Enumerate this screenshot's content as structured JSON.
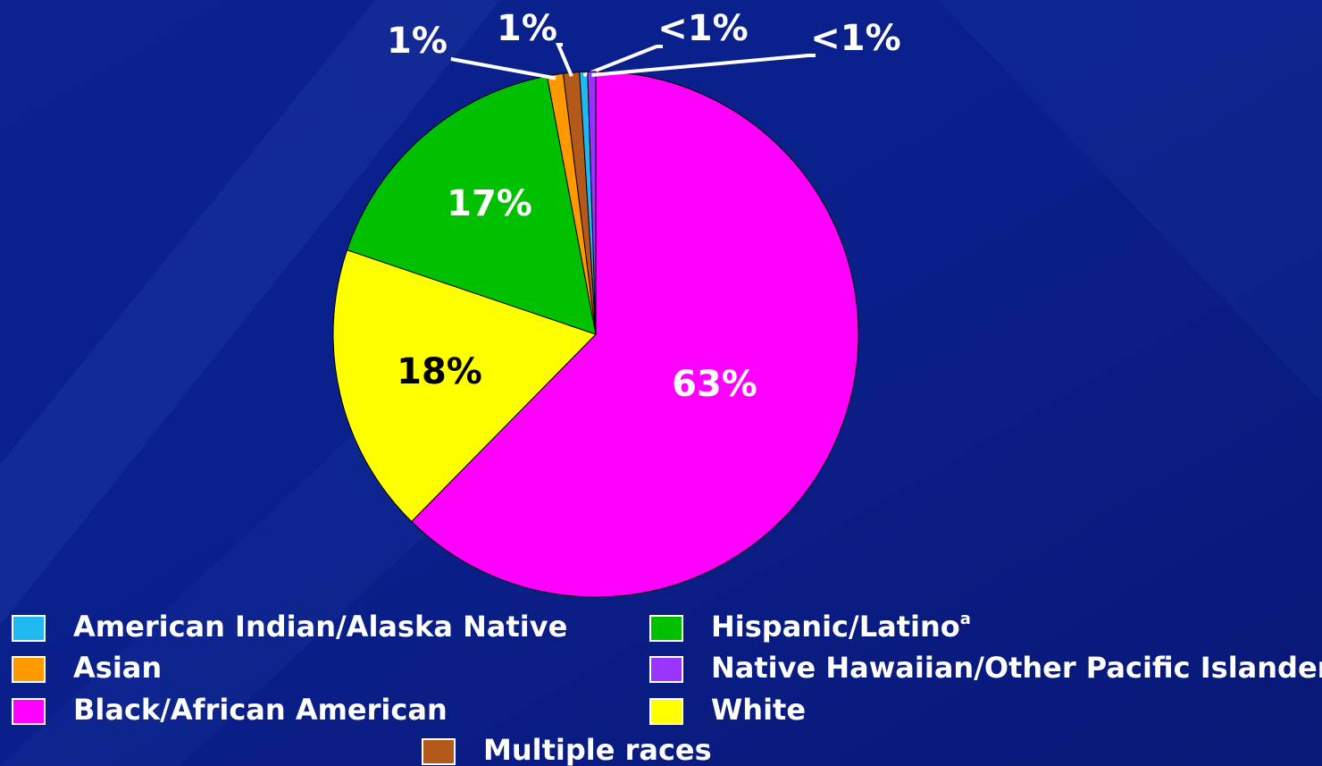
{
  "chart_data": {
    "type": "pie",
    "categories": [
      "Black/African American",
      "White",
      "Hispanic/Latino",
      "Asian",
      "Multiple races",
      "American Indian/Alaska Native",
      "Native Hawaiian/Other Pacific Islander"
    ],
    "category_superscripts": [
      null,
      null,
      "a",
      null,
      null,
      null,
      null
    ],
    "values": [
      63,
      18,
      17,
      1,
      1,
      0.5,
      0.5
    ],
    "value_labels": [
      "63%",
      "18%",
      "17%",
      "1%",
      "1%",
      "<1%",
      "<1%"
    ],
    "colors": [
      "#ff00ff",
      "#ffff00",
      "#00c000",
      "#ff9900",
      "#b35a1a",
      "#1fb8f0",
      "#9933ff"
    ]
  }
}
